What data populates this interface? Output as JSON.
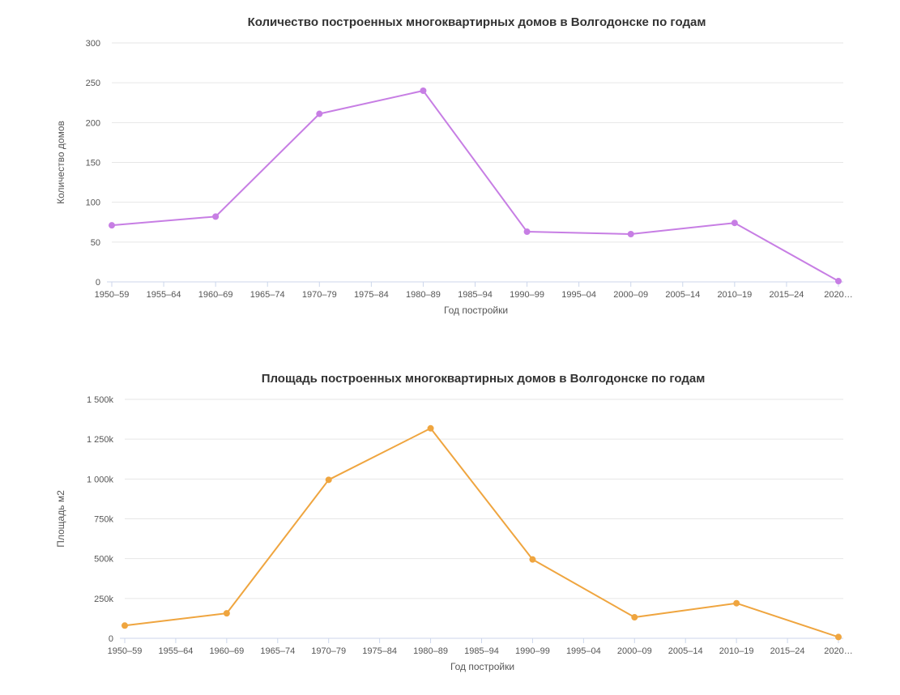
{
  "colors": {
    "series1": "#c77ee4",
    "series2": "#efa53f"
  },
  "chart_data": [
    {
      "type": "line",
      "title": "Количество построенных многоквартирных домов в Волгодонске по годам",
      "xlabel": "Год постройки",
      "ylabel": "Количество домов",
      "categories": [
        "1950–59",
        "1955–64",
        "1960–69",
        "1965–74",
        "1970–79",
        "1975–84",
        "1980–89",
        "1985–94",
        "1990–99",
        "1995–04",
        "2000–09",
        "2005–14",
        "2010–19",
        "2015–24",
        "2020…"
      ],
      "series": [
        {
          "name": "Количество домов",
          "x": [
            "1950–59",
            "1960–69",
            "1970–79",
            "1980–89",
            "1990–99",
            "2000–09",
            "2010–19",
            "2020…"
          ],
          "values": [
            71,
            82,
            211,
            240,
            63,
            60,
            74,
            1
          ]
        }
      ],
      "ylim": [
        0,
        300
      ],
      "yticks": [
        0,
        50,
        100,
        150,
        200,
        250,
        300
      ],
      "ytick_labels": [
        "0",
        "50",
        "100",
        "150",
        "200",
        "250",
        "300"
      ]
    },
    {
      "type": "line",
      "title": "Площадь построенных многоквартирных домов в Волгодонске по годам",
      "xlabel": "Год постройки",
      "ylabel": "Площадь м2",
      "categories": [
        "1950–59",
        "1955–64",
        "1960–69",
        "1965–74",
        "1970–79",
        "1975–84",
        "1980–89",
        "1985–94",
        "1990–99",
        "1995–04",
        "2000–09",
        "2005–14",
        "2010–19",
        "2015–24",
        "2020…"
      ],
      "series": [
        {
          "name": "Площадь м2",
          "x": [
            "1950–59",
            "1960–69",
            "1970–79",
            "1980–89",
            "1990–99",
            "2000–09",
            "2010–19",
            "2020…"
          ],
          "values": [
            80000,
            157000,
            995000,
            1318000,
            495000,
            132000,
            220000,
            8000
          ]
        }
      ],
      "ylim": [
        0,
        1500000
      ],
      "yticks": [
        0,
        250000,
        500000,
        750000,
        1000000,
        1250000,
        1500000
      ],
      "ytick_labels": [
        "0",
        "250k",
        "500k",
        "750k",
        "1 000k",
        "1 250k",
        "1 500k"
      ]
    }
  ]
}
